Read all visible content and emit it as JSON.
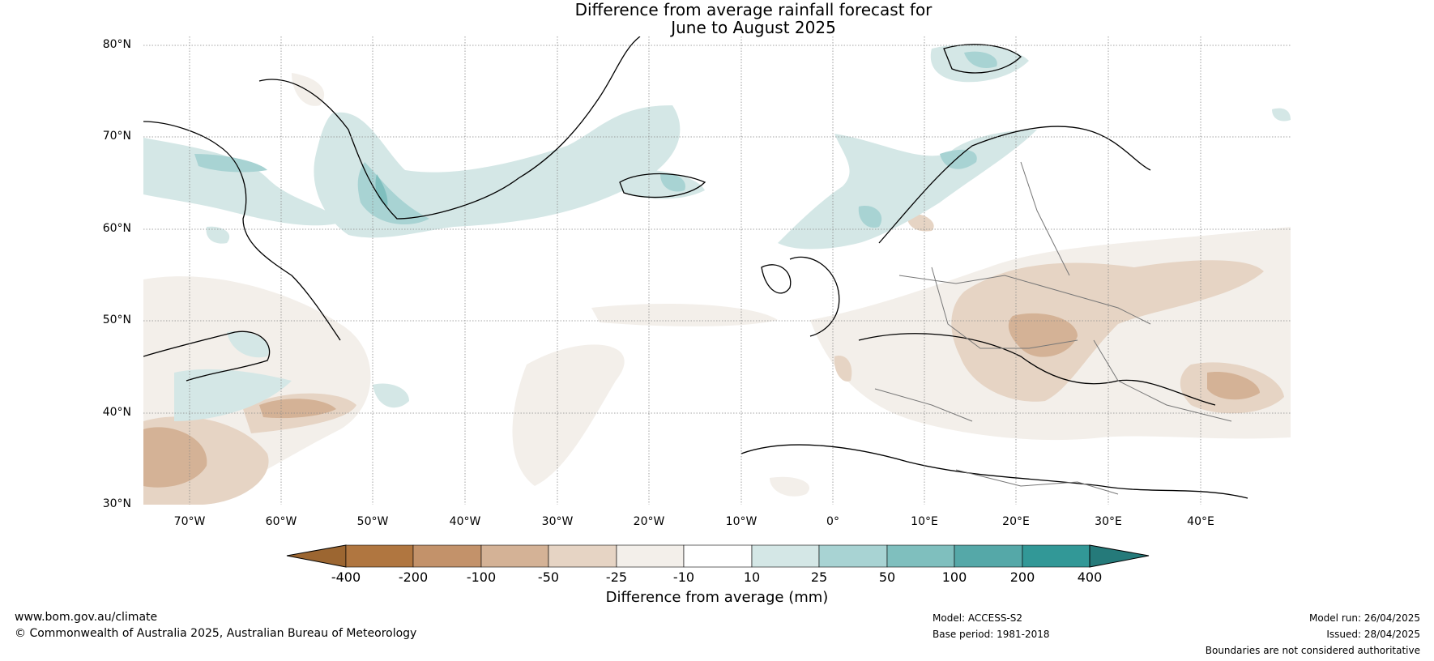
{
  "title": {
    "line1": "Difference from average rainfall forecast for",
    "line2": "June to August 2025"
  },
  "map": {
    "latitude_labels": [
      "80°N",
      "70°N",
      "60°N",
      "50°N",
      "40°N",
      "30°N"
    ],
    "longitude_labels": [
      "70°W",
      "60°W",
      "50°W",
      "40°W",
      "30°W",
      "20°W",
      "10°W",
      "0°",
      "10°E",
      "20°E",
      "30°E",
      "40°E"
    ],
    "extent": {
      "lon_min": "75°W",
      "lon_max": "50°E",
      "lat_min": "30°N",
      "lat_max": "81°N"
    },
    "land_fill": "#ffffff",
    "coastline_color": "#000000",
    "border_color": "#777777"
  },
  "colorbar": {
    "ticks": [
      "-400",
      "-200",
      "-100",
      "-50",
      "-25",
      "-10",
      "10",
      "25",
      "50",
      "100",
      "200",
      "400"
    ],
    "colors": [
      "#9c6631",
      "#b07640",
      "#c3926a",
      "#d4b296",
      "#e6d4c4",
      "#f3efea",
      "#ffffff",
      "#d4e7e6",
      "#a8d3d3",
      "#7fbfbe",
      "#55a8a8",
      "#329897",
      "#257a7a"
    ],
    "label": "Difference from average (mm)"
  },
  "footer": {
    "website": "www.bom.gov.au/climate",
    "copyright": "© Commonwealth of Australia 2025, Australian Bureau of Meteorology",
    "model": "Model: ACCESS-S2",
    "base_period": "Base period: 1981-2018",
    "model_run": "Model run: 26/04/2025",
    "issued": "Issued: 28/04/2025",
    "disclaimer": "Boundaries are not considered authoritative"
  }
}
